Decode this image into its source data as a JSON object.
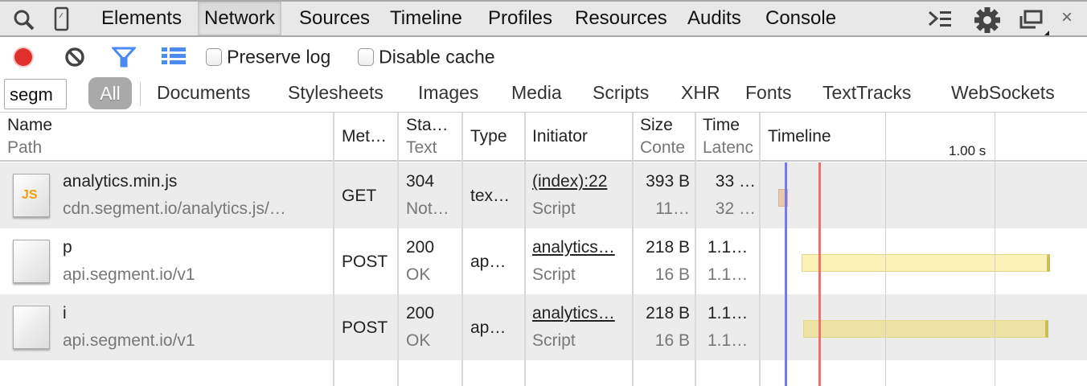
{
  "tabbar": {
    "tabs": [
      "Elements",
      "Network",
      "Sources",
      "Timeline",
      "Profiles",
      "Resources",
      "Audits",
      "Console"
    ],
    "selected": "Network"
  },
  "toolbar": {
    "preserve_log": "Preserve log",
    "preserve_log_checked": false,
    "disable_cache": "Disable cache",
    "disable_cache_checked": false,
    "record_color": "#e0302e"
  },
  "filter": {
    "value": "segm",
    "all": "All",
    "types": [
      "Documents",
      "Stylesheets",
      "Images",
      "Media",
      "Scripts",
      "XHR",
      "Fonts",
      "TextTracks",
      "WebSockets"
    ]
  },
  "columns": {
    "name": "Name",
    "path": "Path",
    "method": "Met…",
    "status": "Sta…",
    "text": "Text",
    "type": "Type",
    "initiator": "Initiator",
    "size": "Size",
    "content": "Conte",
    "time": "Time",
    "latency": "Latenc",
    "timeline": "Timeline",
    "tick": "1.00 s"
  },
  "rows": [
    {
      "name": "analytics.min.js",
      "path": "cdn.segment.io/analytics.js/…",
      "method": "GET",
      "status": "304",
      "status_text": "Not…",
      "type": "tex…",
      "initiator": "(index):22",
      "initiator_type": "Script",
      "size": "393 B",
      "content": "11…",
      "time": "33 …",
      "latency": "32 …",
      "icon": "js-file-icon"
    },
    {
      "name": "p",
      "path": "api.segment.io/v1",
      "method": "POST",
      "status": "200",
      "status_text": "OK",
      "type": "ap…",
      "initiator": "analytics…",
      "initiator_type": "Script",
      "size": "218 B",
      "content": "16 B",
      "time": "1.1…",
      "latency": "1.1…",
      "icon": "blank-file-icon"
    },
    {
      "name": "i",
      "path": "api.segment.io/v1",
      "method": "POST",
      "status": "200",
      "status_text": "OK",
      "type": "ap…",
      "initiator": "analytics…",
      "initiator_type": "Script",
      "size": "218 B",
      "content": "16 B",
      "time": "1.1…",
      "latency": "1.1…",
      "icon": "blank-file-icon"
    }
  ]
}
